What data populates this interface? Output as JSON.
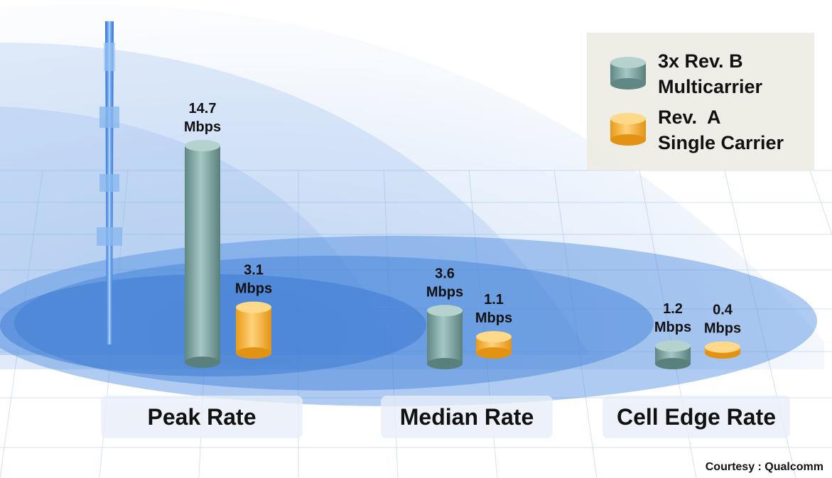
{
  "chart_data": {
    "type": "bar",
    "categories": [
      "Peak Rate",
      "Median Rate",
      "Cell Edge Rate"
    ],
    "series": [
      {
        "name": "3x Rev. B Multicarrier",
        "values": [
          14.7,
          3.6,
          1.2
        ],
        "labels": [
          "14.7",
          "3.6",
          "1.2"
        ],
        "color": "#7fa8a4"
      },
      {
        "name": "Rev.  A Single Carrier",
        "values": [
          3.1,
          1.1,
          0.4
        ],
        "labels": [
          "3.1",
          "1.1",
          "0.4"
        ],
        "color": "#f4b43a"
      }
    ],
    "unit": "Mbps",
    "legend": [
      {
        "line1": "3x Rev. B",
        "line2": "Multicarrier",
        "swatch": "teal-cylinder"
      },
      {
        "line1": "Rev.  A",
        "line2": "Single Carrier",
        "swatch": "gold-cylinder"
      }
    ],
    "legend_position": "top-right",
    "grid": false
  },
  "courtesy": "Courtesy : Qualcomm",
  "colors": {
    "teal": "#7fa8a4",
    "gold": "#f4b43a",
    "coverage_blue": "#3f7fd6",
    "tower_blue": "#4a8ce0"
  }
}
